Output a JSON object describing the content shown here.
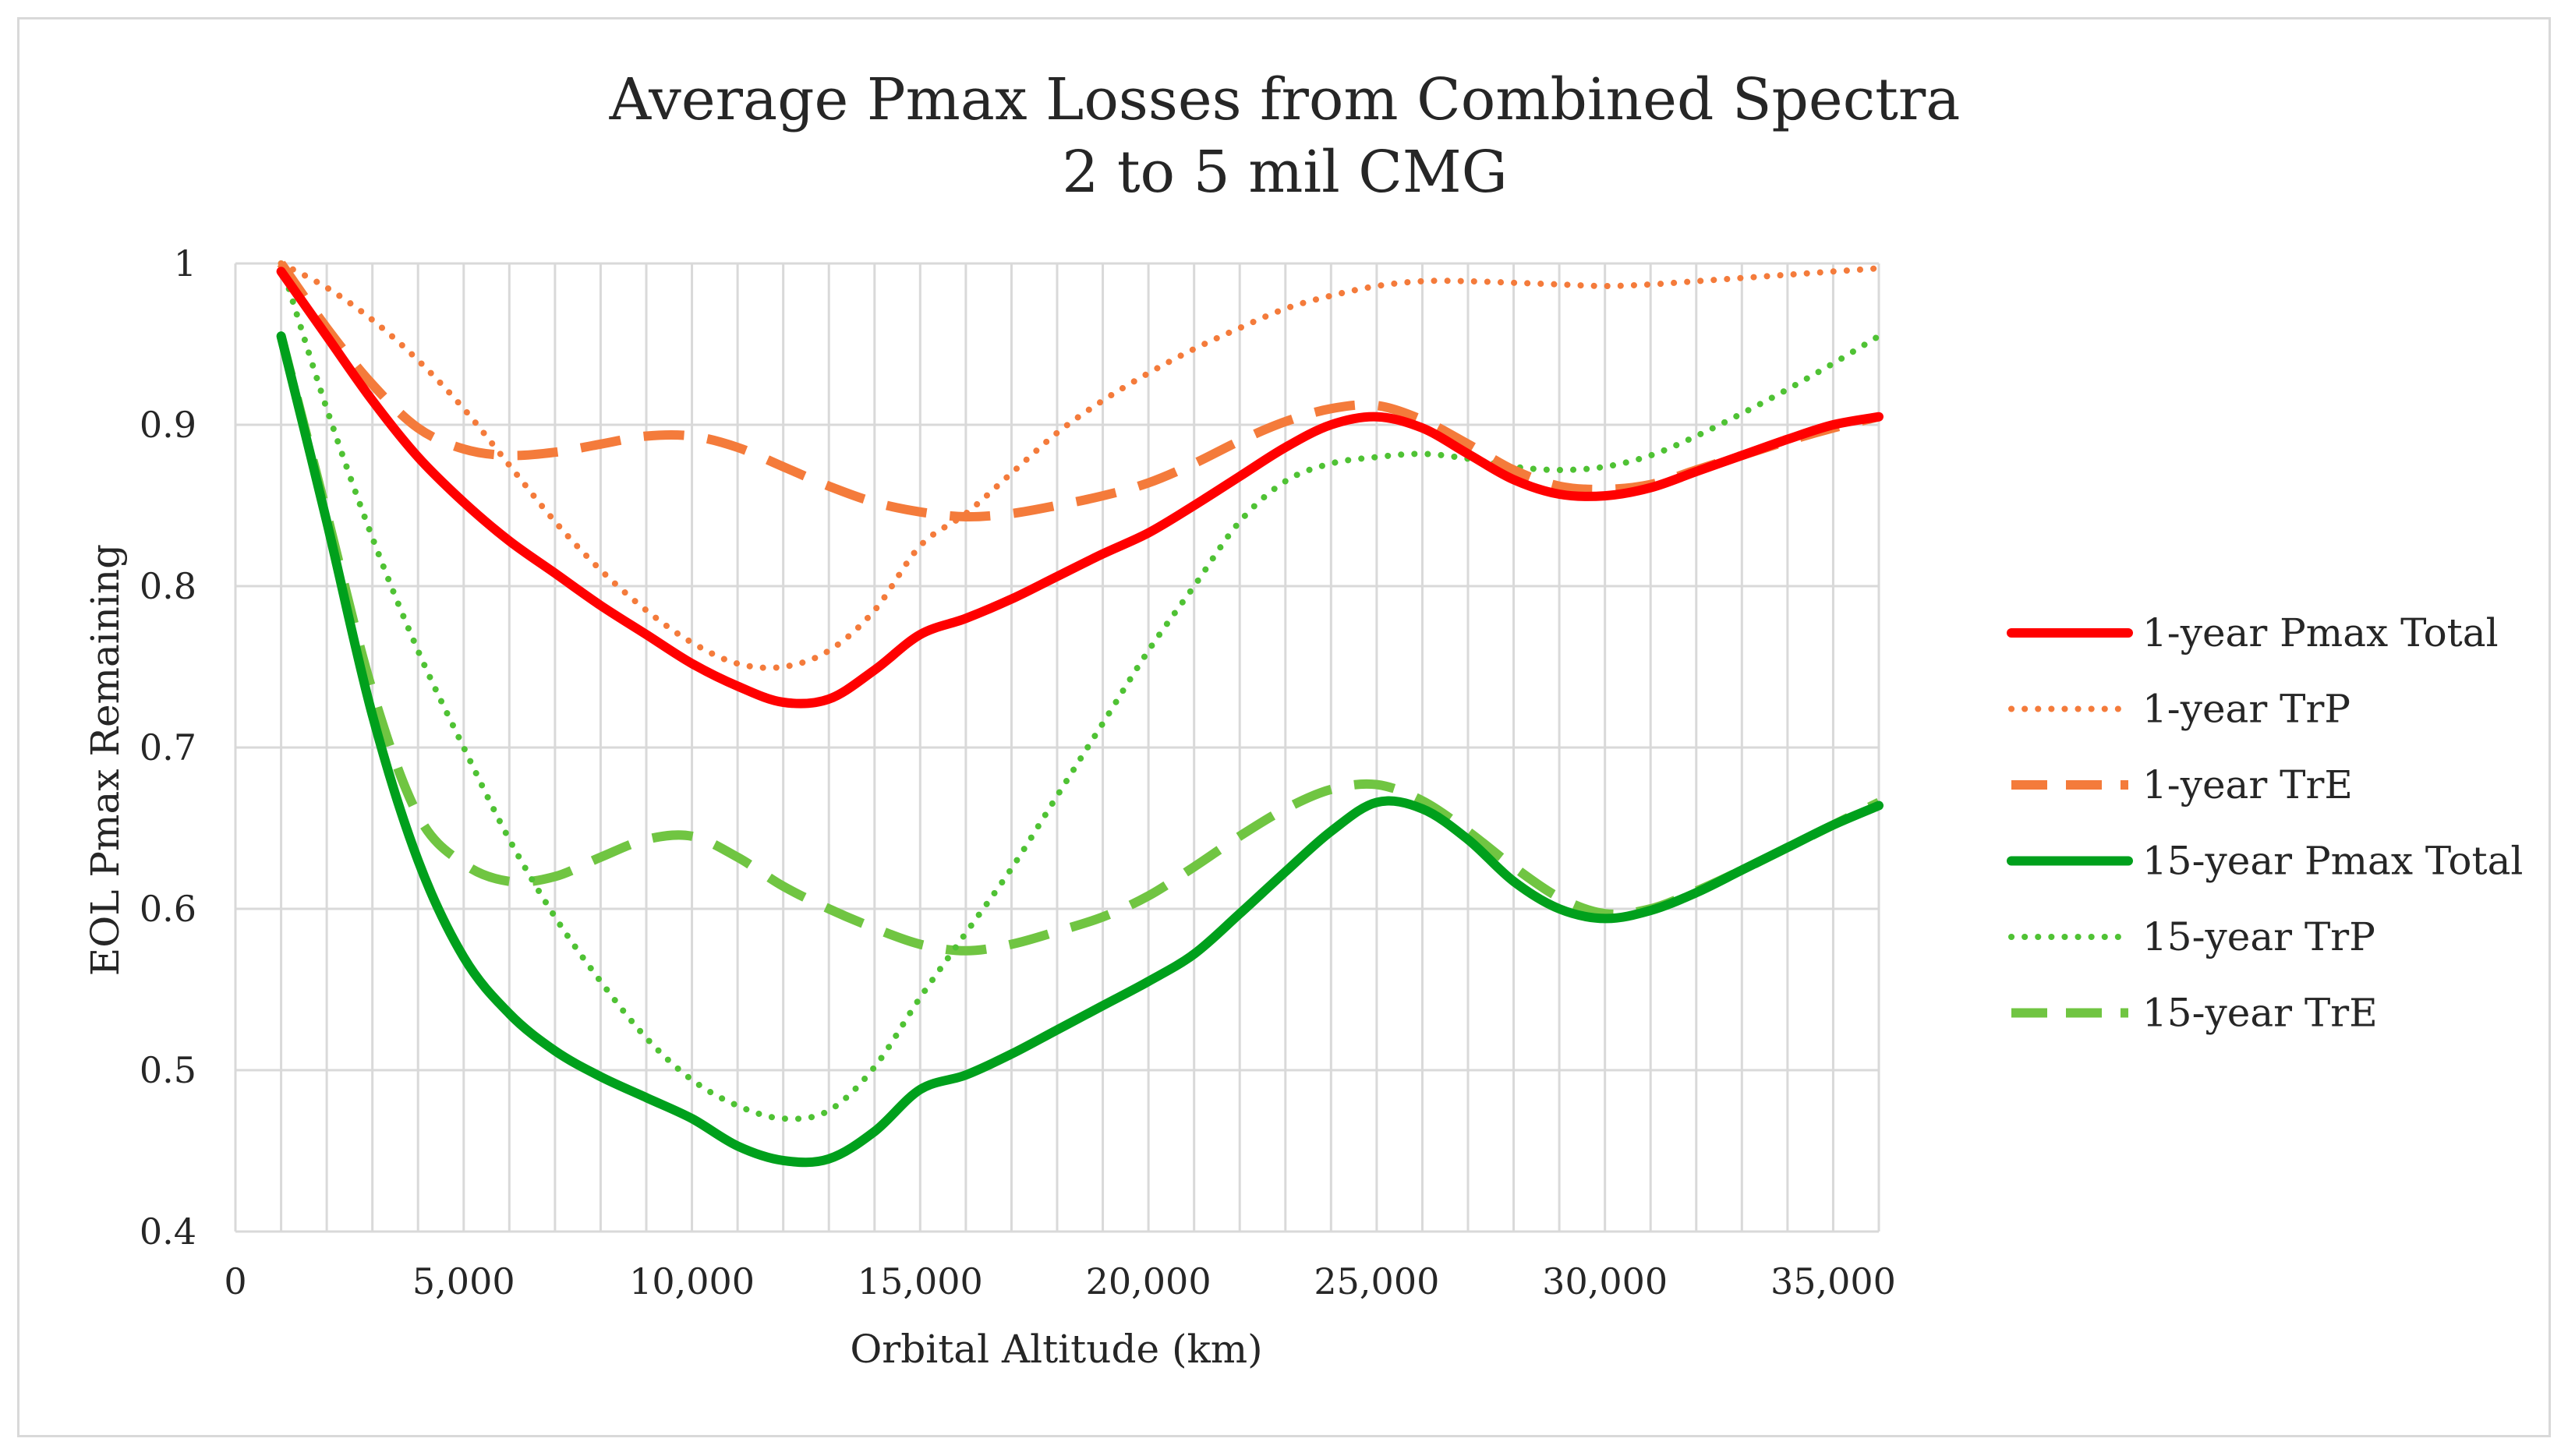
{
  "chart_data": {
    "type": "line",
    "title": [
      "Average Pmax Losses from Combined Spectra",
      "2 to 5 mil CMG"
    ],
    "xlabel": "Orbital Altitude (km)",
    "ylabel": "EOL Pmax Remaining",
    "xlim": [
      0,
      36000
    ],
    "ylim": [
      0.4,
      1.0
    ],
    "x_ticks": [
      0,
      5000,
      10000,
      15000,
      20000,
      25000,
      30000,
      35000
    ],
    "x_tick_labels": [
      "0",
      "5,000",
      "10,000",
      "15,000",
      "20,000",
      "25,000",
      "30,000",
      "35,000"
    ],
    "y_ticks": [
      0.4,
      0.5,
      0.6,
      0.7,
      0.8,
      0.9,
      1.0
    ],
    "y_tick_labels": [
      "0.4",
      "0.5",
      "0.6",
      "0.7",
      "0.8",
      "0.9",
      "1"
    ],
    "grid": "vertical and horizontal gridlines",
    "legend_position": "right",
    "series": [
      {
        "name": "1-year Pmax Total",
        "color": "#ff0000",
        "style": "solid",
        "x": [
          1000,
          2000,
          3000,
          4000,
          5000,
          6000,
          7000,
          8000,
          9000,
          10000,
          11000,
          12000,
          13000,
          14000,
          15000,
          16000,
          17000,
          18000,
          19000,
          20000,
          21000,
          22000,
          23000,
          24000,
          25000,
          26000,
          27000,
          28000,
          29000,
          30000,
          31000,
          32000,
          33000,
          34000,
          35000,
          36000
        ],
        "values": [
          0.995,
          0.955,
          0.915,
          0.88,
          0.852,
          0.828,
          0.808,
          0.788,
          0.77,
          0.752,
          0.738,
          0.728,
          0.73,
          0.748,
          0.77,
          0.78,
          0.792,
          0.806,
          0.82,
          0.833,
          0.85,
          0.868,
          0.886,
          0.9,
          0.905,
          0.898,
          0.882,
          0.866,
          0.857,
          0.856,
          0.861,
          0.871,
          0.881,
          0.891,
          0.9,
          0.905
        ]
      },
      {
        "name": "1-year TrP",
        "color": "#f47b3b",
        "style": "dotted",
        "x": [
          1000,
          2000,
          3000,
          4000,
          5000,
          6000,
          7000,
          8000,
          9000,
          10000,
          11000,
          12000,
          13000,
          14000,
          15000,
          16000,
          17000,
          18000,
          19000,
          20000,
          21000,
          22000,
          23000,
          24000,
          25000,
          26000,
          27000,
          28000,
          29000,
          30000,
          31000,
          32000,
          33000,
          34000,
          35000,
          36000
        ],
        "values": [
          1.0,
          0.985,
          0.965,
          0.94,
          0.91,
          0.875,
          0.84,
          0.81,
          0.785,
          0.765,
          0.752,
          0.75,
          0.76,
          0.785,
          0.825,
          0.845,
          0.87,
          0.895,
          0.915,
          0.932,
          0.947,
          0.96,
          0.972,
          0.98,
          0.986,
          0.989,
          0.989,
          0.988,
          0.987,
          0.986,
          0.987,
          0.989,
          0.991,
          0.993,
          0.995,
          0.997
        ]
      },
      {
        "name": "1-year TrE",
        "color": "#f47b3b",
        "style": "dashed",
        "x": [
          1000,
          2000,
          3000,
          4000,
          5000,
          6000,
          7000,
          8000,
          9000,
          10000,
          11000,
          12000,
          13000,
          14000,
          15000,
          16000,
          17000,
          18000,
          19000,
          20000,
          21000,
          22000,
          23000,
          24000,
          25000,
          26000,
          27000,
          28000,
          29000,
          30000,
          31000,
          32000,
          33000,
          34000,
          35000,
          36000
        ],
        "values": [
          1.0,
          0.96,
          0.925,
          0.898,
          0.885,
          0.881,
          0.883,
          0.888,
          0.893,
          0.893,
          0.886,
          0.874,
          0.862,
          0.852,
          0.846,
          0.843,
          0.845,
          0.85,
          0.856,
          0.864,
          0.876,
          0.89,
          0.902,
          0.91,
          0.912,
          0.903,
          0.888,
          0.872,
          0.862,
          0.86,
          0.863,
          0.872,
          0.881,
          0.89,
          0.898,
          0.905
        ]
      },
      {
        "name": "15-year Pmax Total",
        "color": "#00a01c",
        "style": "solid",
        "x": [
          1000,
          2000,
          3000,
          4000,
          5000,
          6000,
          7000,
          8000,
          9000,
          10000,
          11000,
          12000,
          13000,
          14000,
          15000,
          16000,
          17000,
          18000,
          19000,
          20000,
          21000,
          22000,
          23000,
          24000,
          25000,
          26000,
          27000,
          28000,
          29000,
          30000,
          31000,
          32000,
          33000,
          34000,
          35000,
          36000
        ],
        "values": [
          0.955,
          0.84,
          0.72,
          0.63,
          0.57,
          0.535,
          0.512,
          0.496,
          0.483,
          0.47,
          0.453,
          0.444,
          0.445,
          0.462,
          0.488,
          0.497,
          0.51,
          0.525,
          0.54,
          0.555,
          0.572,
          0.597,
          0.623,
          0.648,
          0.666,
          0.662,
          0.643,
          0.617,
          0.6,
          0.594,
          0.599,
          0.61,
          0.624,
          0.638,
          0.652,
          0.664
        ]
      },
      {
        "name": "15-year TrP",
        "color": "#4fc234",
        "style": "dotted",
        "x": [
          1000,
          2000,
          3000,
          4000,
          5000,
          6000,
          7000,
          8000,
          9000,
          10000,
          11000,
          12000,
          13000,
          14000,
          15000,
          16000,
          17000,
          18000,
          19000,
          20000,
          21000,
          22000,
          23000,
          24000,
          25000,
          26000,
          27000,
          28000,
          29000,
          30000,
          31000,
          32000,
          33000,
          34000,
          35000,
          36000
        ],
        "values": [
          1.0,
          0.91,
          0.83,
          0.76,
          0.7,
          0.643,
          0.595,
          0.555,
          0.52,
          0.494,
          0.478,
          0.47,
          0.475,
          0.502,
          0.545,
          0.585,
          0.625,
          0.67,
          0.715,
          0.76,
          0.8,
          0.84,
          0.865,
          0.876,
          0.88,
          0.882,
          0.879,
          0.874,
          0.872,
          0.874,
          0.881,
          0.893,
          0.907,
          0.922,
          0.938,
          0.955
        ]
      },
      {
        "name": "15-year TrE",
        "color": "#70c542",
        "style": "dashed",
        "x": [
          1000,
          2000,
          3000,
          4000,
          5000,
          6000,
          7000,
          8000,
          9000,
          10000,
          11000,
          12000,
          13000,
          14000,
          15000,
          16000,
          17000,
          18000,
          19000,
          20000,
          21000,
          22000,
          23000,
          24000,
          25000,
          26000,
          27000,
          28000,
          29000,
          30000,
          31000,
          32000,
          33000,
          34000,
          35000,
          36000
        ],
        "values": [
          0.955,
          0.845,
          0.735,
          0.658,
          0.628,
          0.617,
          0.62,
          0.632,
          0.643,
          0.645,
          0.632,
          0.614,
          0.6,
          0.588,
          0.578,
          0.574,
          0.578,
          0.586,
          0.595,
          0.608,
          0.626,
          0.645,
          0.662,
          0.674,
          0.677,
          0.667,
          0.648,
          0.626,
          0.607,
          0.597,
          0.6,
          0.611,
          0.624,
          0.638,
          0.652,
          0.666
        ]
      }
    ]
  }
}
